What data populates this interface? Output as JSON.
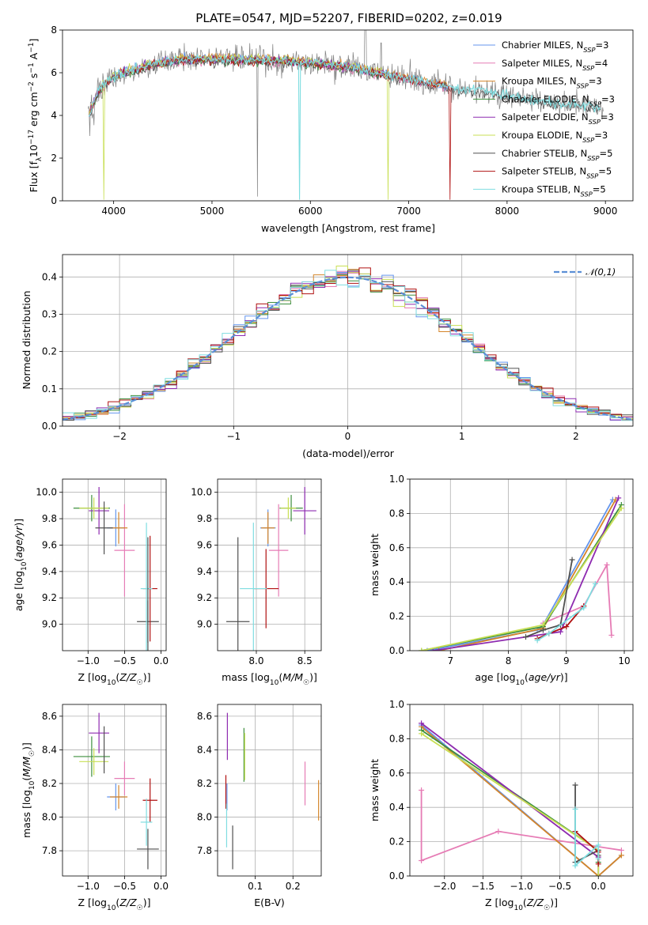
{
  "title": "PLATE=0547, MJD=52207, FIBERID=0202, z=0.019",
  "colors": [
    "#6495ed",
    "#e67cb5",
    "#d4852a",
    "#3d8f3d",
    "#8e2bb0",
    "#c8df54",
    "#505050",
    "#b01010",
    "#7fdde0"
  ],
  "legend": [
    "Chabrier MILES, N_SSP=3",
    "Salpeter MILES, N_SSP=4",
    "Kroupa MILES, N_SSP=3",
    "Chabrier ELODIE, N_SSP=3",
    "Salpeter ELODIE, N_SSP=3",
    "Kroupa ELODIE, N_SSP=3",
    "Chabrier STELIB, N_SSP=5",
    "Salpeter STELIB, N_SSP=5",
    "Kroupa STELIB, N_SSP=5"
  ],
  "chart_data": [
    {
      "type": "line",
      "name": "spectrum",
      "xlabel": "wavelength [Angstrom, rest frame]",
      "ylabel": "Flux [f_λ 10^-17 erg cm^-2 s^-1 A^-1]",
      "xlim": [
        3480,
        9280
      ],
      "ylim": [
        0,
        8
      ],
      "xticks": [
        4000,
        5000,
        6000,
        7000,
        8000,
        9000
      ],
      "yticks": [
        0,
        2,
        4,
        6,
        8
      ],
      "data_color": "#808080",
      "continuum": {
        "x": [
          3750,
          3850,
          3950,
          4050,
          4200,
          4400,
          4700,
          5000,
          5300,
          5700,
          6000,
          6300,
          6600,
          6900,
          7200,
          7500,
          7800,
          8100,
          8400,
          8700,
          8900
        ],
        "y": [
          4.0,
          5.2,
          5.6,
          5.9,
          6.1,
          6.4,
          6.6,
          6.6,
          6.6,
          6.55,
          6.45,
          6.3,
          6.05,
          5.8,
          5.5,
          5.25,
          5.1,
          4.85,
          4.6,
          4.5,
          4.4
        ]
      },
      "grid": false,
      "legend_position": "upper right"
    },
    {
      "type": "step",
      "name": "residual-histogram",
      "xlabel": "(data-model)/error",
      "ylabel": "Normed distribution",
      "xlim": [
        -2.5,
        2.5
      ],
      "ylim": [
        0,
        0.46
      ],
      "xticks": [
        -2,
        -1,
        0,
        1,
        2
      ],
      "yticks": [
        0.0,
        0.1,
        0.2,
        0.3,
        0.4
      ],
      "bin_width": 0.1,
      "reference": {
        "label": "𝒩(0,1)",
        "mean": 0,
        "sigma": 1,
        "color": "#5b8fd6"
      },
      "grid": true,
      "legend_position": "upper right"
    },
    {
      "type": "errorbar",
      "name": "age-vs-Z",
      "xlabel": "Z [log10(Z/Z☉)]",
      "ylabel": "age [log10(age/yr)]",
      "xlim": [
        -1.35,
        0.07
      ],
      "ylim": [
        8.8,
        10.1
      ],
      "xticks": [
        -1.0,
        -0.5,
        0.0
      ],
      "yticks": [
        9.0,
        9.2,
        9.4,
        9.6,
        9.8,
        10.0
      ],
      "points": [
        {
          "s": 0,
          "x": -0.62,
          "y": 9.73,
          "xe": 0.12,
          "ye": 0.14
        },
        {
          "s": 1,
          "x": -0.5,
          "y": 9.56,
          "xe": 0.14,
          "ye": 0.35
        },
        {
          "s": 2,
          "x": -0.58,
          "y": 9.73,
          "xe": 0.12,
          "ye": 0.12
        },
        {
          "s": 3,
          "x": -0.95,
          "y": 9.88,
          "xe": 0.25,
          "ye": 0.1
        },
        {
          "s": 4,
          "x": -0.85,
          "y": 9.86,
          "xe": 0.14,
          "ye": 0.18
        },
        {
          "s": 5,
          "x": -0.92,
          "y": 9.88,
          "xe": 0.2,
          "ye": 0.08
        },
        {
          "s": 6,
          "x": -0.18,
          "y": 9.02,
          "xe": 0.15,
          "ye": 0.16
        },
        {
          "s": 7,
          "x": -0.15,
          "y": 9.27,
          "xe": 0.1,
          "ye": 0.4
        },
        {
          "s": 8,
          "x": -0.2,
          "y": 9.27,
          "xe": 0.08,
          "ye": 0.5
        },
        {
          "s": 6,
          "x": -0.18,
          "y": 9.02,
          "xe": 0.0,
          "ye": 0.64
        },
        {
          "s": 6,
          "x": -0.78,
          "y": 9.73,
          "xe": 0.12,
          "ye": 0.2
        }
      ]
    },
    {
      "type": "errorbar",
      "name": "age-vs-mass",
      "xlabel": "mass [log10(M/M☉)]",
      "ylabel": "",
      "xlim": [
        7.6,
        8.67
      ],
      "ylim": [
        8.8,
        10.1
      ],
      "xticks": [
        8.0,
        8.5
      ],
      "yticks": [
        9.0,
        9.2,
        9.4,
        9.6,
        9.8,
        10.0
      ],
      "points": [
        {
          "s": 0,
          "x": 8.12,
          "y": 9.73,
          "xe": 0.08,
          "ye": 0.14
        },
        {
          "s": 1,
          "x": 8.23,
          "y": 9.56,
          "xe": 0.1,
          "ye": 0.35
        },
        {
          "s": 2,
          "x": 8.12,
          "y": 9.73,
          "xe": 0.07,
          "ye": 0.12
        },
        {
          "s": 3,
          "x": 8.36,
          "y": 9.88,
          "xe": 0.12,
          "ye": 0.1
        },
        {
          "s": 4,
          "x": 8.5,
          "y": 9.86,
          "xe": 0.12,
          "ye": 0.18
        },
        {
          "s": 5,
          "x": 8.33,
          "y": 9.88,
          "xe": 0.08,
          "ye": 0.08
        },
        {
          "s": 6,
          "x": 7.81,
          "y": 9.02,
          "xe": 0.12,
          "ye": 0.64
        },
        {
          "s": 7,
          "x": 8.1,
          "y": 9.27,
          "xe": 0.13,
          "ye": 0.3
        },
        {
          "s": 8,
          "x": 7.97,
          "y": 9.27,
          "xe": 0.14,
          "ye": 0.5
        }
      ]
    },
    {
      "type": "line",
      "name": "mass-weight-vs-age",
      "xlabel": "age [log10(age/yr)]",
      "ylabel": "mass weight",
      "xlim": [
        6.3,
        10.15
      ],
      "ylim": [
        0,
        1.0
      ],
      "xticks": [
        7,
        8,
        9,
        10
      ],
      "yticks": [
        0.0,
        0.2,
        0.4,
        0.6,
        0.8,
        1.0
      ],
      "series": [
        {
          "s": 0,
          "x": [
            6.6,
            8.5,
            8.6,
            9.8
          ],
          "y": [
            0.0,
            0.12,
            0.15,
            0.88
          ]
        },
        {
          "s": 1,
          "x": [
            8.6,
            9.3,
            9.7,
            9.78
          ],
          "y": [
            0.16,
            0.26,
            0.5,
            0.09
          ]
        },
        {
          "s": 2,
          "x": [
            6.8,
            8.6,
            9.85
          ],
          "y": [
            0.0,
            0.13,
            0.88
          ]
        },
        {
          "s": 3,
          "x": [
            6.5,
            8.6,
            9.95
          ],
          "y": [
            0.0,
            0.14,
            0.85
          ]
        },
        {
          "s": 4,
          "x": [
            6.7,
            8.9,
            9.9
          ],
          "y": [
            0.0,
            0.11,
            0.89
          ]
        },
        {
          "s": 5,
          "x": [
            6.5,
            8.6,
            9.95
          ],
          "y": [
            0.0,
            0.15,
            0.83
          ]
        },
        {
          "s": 6,
          "x": [
            8.3,
            8.6,
            8.9,
            9.1
          ],
          "y": [
            0.08,
            0.12,
            0.15,
            0.53
          ]
        },
        {
          "s": 7,
          "x": [
            8.5,
            8.7,
            9.0,
            9.3
          ],
          "y": [
            0.07,
            0.1,
            0.14,
            0.26
          ]
        },
        {
          "s": 8,
          "x": [
            8.5,
            8.7,
            9.3,
            9.5
          ],
          "y": [
            0.06,
            0.1,
            0.25,
            0.39
          ]
        }
      ]
    },
    {
      "type": "errorbar",
      "name": "mass-vs-Z",
      "xlabel": "Z [log10(Z/Z☉)]",
      "ylabel": "mass [log10(M/M☉)]",
      "xlim": [
        -1.35,
        0.07
      ],
      "ylim": [
        7.65,
        8.67
      ],
      "xticks": [
        -1.0,
        -0.5,
        0.0
      ],
      "yticks": [
        7.8,
        8.0,
        8.2,
        8.4,
        8.6
      ],
      "points": [
        {
          "s": 0,
          "x": -0.62,
          "y": 8.12,
          "xe": 0.12,
          "ye": 0.08
        },
        {
          "s": 1,
          "x": -0.5,
          "y": 8.23,
          "xe": 0.14,
          "ye": 0.1
        },
        {
          "s": 2,
          "x": -0.58,
          "y": 8.12,
          "xe": 0.12,
          "ye": 0.07
        },
        {
          "s": 3,
          "x": -0.95,
          "y": 8.36,
          "xe": 0.25,
          "ye": 0.12
        },
        {
          "s": 4,
          "x": -0.85,
          "y": 8.5,
          "xe": 0.14,
          "ye": 0.12
        },
        {
          "s": 5,
          "x": -0.92,
          "y": 8.33,
          "xe": 0.2,
          "ye": 0.08
        },
        {
          "s": 6,
          "x": -0.18,
          "y": 7.81,
          "xe": 0.15,
          "ye": 0.12
        },
        {
          "s": 7,
          "x": -0.15,
          "y": 8.1,
          "xe": 0.1,
          "ye": 0.13
        },
        {
          "s": 8,
          "x": -0.2,
          "y": 7.97,
          "xe": 0.08,
          "ye": 0.14
        },
        {
          "s": 6,
          "x": -0.78,
          "y": 8.4,
          "xe": 0.0,
          "ye": 0.14
        }
      ]
    },
    {
      "type": "errorbar",
      "name": "mass-vs-EBV",
      "xlabel": "E(B-V)",
      "ylabel": "",
      "xlim": [
        0.0,
        0.275
      ],
      "ylim": [
        7.65,
        8.67
      ],
      "xticks": [
        0.1,
        0.2
      ],
      "yticks": [
        7.8,
        8.0,
        8.2,
        8.4,
        8.6
      ],
      "points": [
        {
          "s": 0,
          "x": 0.025,
          "y": 8.12,
          "xe": 0.0,
          "ye": 0.08
        },
        {
          "s": 1,
          "x": 0.232,
          "y": 8.2,
          "xe": 0.0,
          "ye": 0.13
        },
        {
          "s": 2,
          "x": 0.268,
          "y": 8.1,
          "xe": 0.0,
          "ye": 0.12
        },
        {
          "s": 3,
          "x": 0.07,
          "y": 8.37,
          "xe": 0.0,
          "ye": 0.16
        },
        {
          "s": 4,
          "x": 0.026,
          "y": 8.48,
          "xe": 0.0,
          "ye": 0.14
        },
        {
          "s": 5,
          "x": 0.072,
          "y": 8.36,
          "xe": 0.0,
          "ye": 0.14
        },
        {
          "s": 6,
          "x": 0.04,
          "y": 7.82,
          "xe": 0.0,
          "ye": 0.13
        },
        {
          "s": 7,
          "x": 0.022,
          "y": 8.15,
          "xe": 0.0,
          "ye": 0.1
        },
        {
          "s": 8,
          "x": 0.024,
          "y": 7.95,
          "xe": 0.0,
          "ye": 0.13
        }
      ]
    },
    {
      "type": "line",
      "name": "mass-weight-vs-Z",
      "xlabel": "Z [log10(Z/Z☉)]",
      "ylabel": "mass weight",
      "xlim": [
        -2.45,
        0.45
      ],
      "ylim": [
        0,
        1.0
      ],
      "xticks": [
        -2.0,
        -1.5,
        -1.0,
        -0.5,
        0.0
      ],
      "yticks": [
        0.0,
        0.2,
        0.4,
        0.6,
        0.8,
        1.0
      ],
      "series": [
        {
          "s": 0,
          "x": [
            -2.3,
            0.0,
            0.3
          ],
          "y": [
            0.88,
            0.0,
            0.12
          ]
        },
        {
          "s": 1,
          "x": [
            -2.3,
            -2.3,
            -1.3,
            0.3
          ],
          "y": [
            0.5,
            0.09,
            0.26,
            0.15
          ]
        },
        {
          "s": 2,
          "x": [
            -2.3,
            0.0,
            0.3
          ],
          "y": [
            0.87,
            0.0,
            0.12
          ]
        },
        {
          "s": 3,
          "x": [
            -2.3,
            0.0,
            0.0
          ],
          "y": [
            0.85,
            0.15,
            0.08
          ]
        },
        {
          "s": 4,
          "x": [
            -2.3,
            0.0,
            0.0
          ],
          "y": [
            0.89,
            0.11,
            0.0
          ]
        },
        {
          "s": 5,
          "x": [
            -2.3,
            0.0,
            0.0
          ],
          "y": [
            0.83,
            0.15,
            0.0
          ]
        },
        {
          "s": 6,
          "x": [
            -0.3,
            -0.3,
            0.0,
            0.0
          ],
          "y": [
            0.53,
            0.08,
            0.15,
            0.12
          ]
        },
        {
          "s": 7,
          "x": [
            -0.3,
            0.0,
            0.0
          ],
          "y": [
            0.26,
            0.14,
            0.07
          ]
        },
        {
          "s": 8,
          "x": [
            -0.3,
            -0.3,
            0.0,
            0.0
          ],
          "y": [
            0.39,
            0.06,
            0.18,
            0.1
          ]
        }
      ]
    }
  ]
}
